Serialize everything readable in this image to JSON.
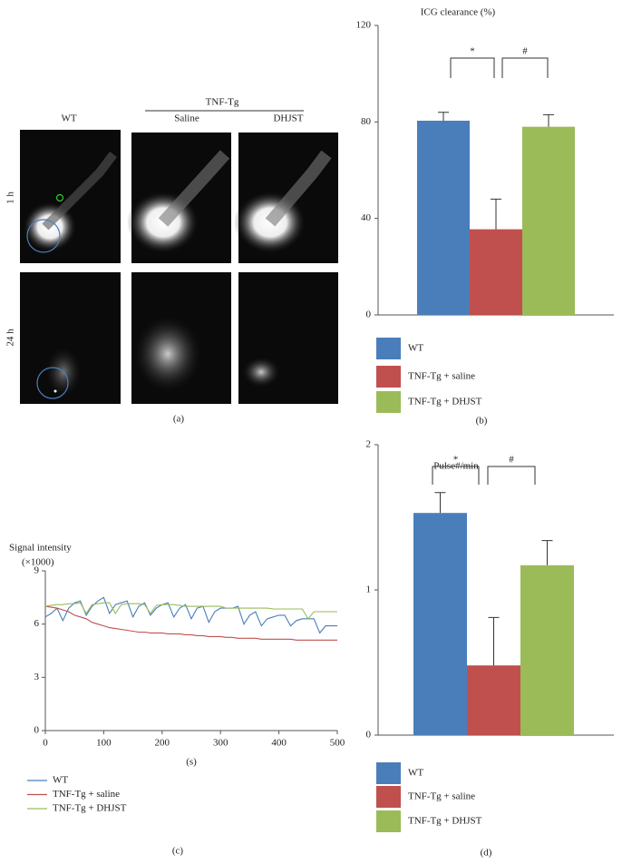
{
  "panel_a": {
    "column_group": "TNF-Tg",
    "columns": [
      "WT",
      "Saline",
      "DHJST"
    ],
    "rows": [
      "1 h",
      "24 h"
    ],
    "panel_label": "(a)"
  },
  "chart_data": [
    {
      "type": "bar",
      "title": "ICG clearance (%)",
      "panel_label": "(b)",
      "ylim": [
        0,
        120
      ],
      "yticks": [
        0,
        40,
        80,
        120
      ],
      "annotations": [
        "*",
        "#"
      ],
      "series": [
        {
          "name": "WT",
          "color": "#4a7ebb",
          "values": [
            80.5
          ],
          "errors": [
            3.5
          ]
        },
        {
          "name": "TNF-Tg + saline",
          "color": "#c0504d",
          "values": [
            35.5
          ],
          "errors": [
            12.5
          ]
        },
        {
          "name": "TNF-Tg + DHJST",
          "color": "#9bbb59",
          "values": [
            78
          ],
          "errors": [
            5
          ]
        }
      ]
    },
    {
      "type": "line",
      "y_label": "Signal intensity",
      "y_unit": "(×1000)",
      "x_label": "(s)",
      "panel_label": "(c)",
      "xlim": [
        0,
        500
      ],
      "xticks": [
        0,
        100,
        200,
        300,
        400,
        500
      ],
      "ylim": [
        0,
        9
      ],
      "yticks": [
        0,
        3,
        6,
        9
      ],
      "x": [
        0,
        10,
        20,
        30,
        40,
        50,
        60,
        70,
        80,
        90,
        100,
        110,
        120,
        130,
        140,
        150,
        160,
        170,
        180,
        190,
        200,
        210,
        220,
        230,
        240,
        250,
        260,
        270,
        280,
        290,
        300,
        310,
        320,
        330,
        340,
        350,
        360,
        370,
        380,
        390,
        400,
        410,
        420,
        430,
        440,
        450,
        460,
        470,
        480,
        490,
        500
      ],
      "series": [
        {
          "name": "WT",
          "color": "#4a7ebb",
          "values": [
            6.4,
            6.6,
            6.9,
            6.2,
            6.9,
            7.2,
            7.3,
            6.5,
            7.0,
            7.3,
            7.5,
            6.6,
            7.1,
            7.2,
            7.3,
            6.4,
            7.0,
            7.2,
            6.5,
            6.9,
            7.1,
            7.2,
            6.4,
            6.9,
            7.1,
            6.3,
            6.9,
            7.0,
            6.1,
            6.7,
            6.9,
            6.9,
            6.9,
            7.0,
            6.0,
            6.5,
            6.7,
            5.9,
            6.3,
            6.4,
            6.5,
            6.5,
            5.9,
            6.2,
            6.3,
            6.3,
            6.3,
            5.5,
            5.9,
            5.9,
            5.9
          ]
        },
        {
          "name": "TNF-Tg + saline",
          "color": "#c0504d",
          "values": [
            7.0,
            6.95,
            6.9,
            6.8,
            6.7,
            6.5,
            6.4,
            6.3,
            6.1,
            6.0,
            5.9,
            5.8,
            5.75,
            5.7,
            5.65,
            5.6,
            5.55,
            5.55,
            5.5,
            5.5,
            5.5,
            5.45,
            5.45,
            5.45,
            5.4,
            5.4,
            5.35,
            5.35,
            5.3,
            5.3,
            5.3,
            5.25,
            5.25,
            5.2,
            5.2,
            5.2,
            5.2,
            5.15,
            5.15,
            5.15,
            5.15,
            5.15,
            5.15,
            5.1,
            5.1,
            5.1,
            5.1,
            5.1,
            5.1,
            5.1,
            5.1
          ]
        },
        {
          "name": "TNF-Tg + DHJST",
          "color": "#9bbb59",
          "values": [
            7.0,
            7.05,
            7.1,
            7.1,
            7.15,
            7.15,
            7.2,
            6.6,
            7.1,
            7.15,
            7.2,
            7.2,
            6.6,
            7.1,
            7.15,
            7.15,
            7.15,
            7.1,
            6.6,
            7.05,
            7.1,
            7.1,
            7.1,
            7.05,
            7.0,
            7.0,
            7.0,
            7.0,
            7.0,
            7.0,
            7.0,
            6.9,
            6.9,
            6.9,
            6.9,
            6.9,
            6.9,
            6.9,
            6.9,
            6.85,
            6.85,
            6.85,
            6.85,
            6.85,
            6.85,
            6.3,
            6.7,
            6.7,
            6.7,
            6.7,
            6.7
          ]
        }
      ]
    },
    {
      "type": "bar",
      "title": "Pulse#/min",
      "panel_label": "(d)",
      "ylim": [
        0,
        2
      ],
      "yticks": [
        0,
        1,
        2
      ],
      "annotations": [
        "*",
        "#"
      ],
      "series": [
        {
          "name": "WT",
          "color": "#4a7ebb",
          "values": [
            1.53
          ],
          "errors": [
            0.14
          ]
        },
        {
          "name": "TNF-Tg + saline",
          "color": "#c0504d",
          "values": [
            0.48
          ],
          "errors": [
            0.33
          ]
        },
        {
          "name": "TNF-Tg + DHJST",
          "color": "#9bbb59",
          "values": [
            1.17
          ],
          "errors": [
            0.17
          ]
        }
      ]
    }
  ]
}
